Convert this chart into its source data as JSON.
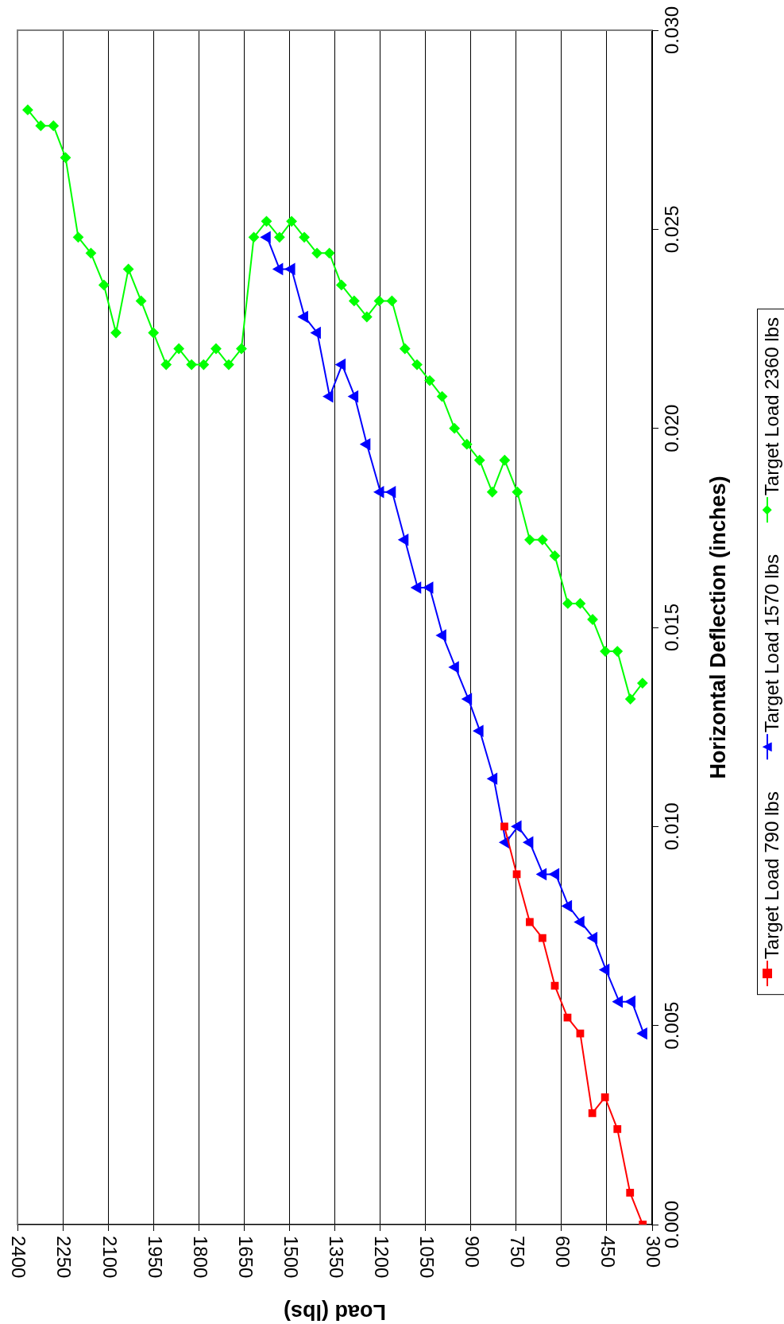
{
  "chart_data": {
    "type": "line",
    "xlabel": "Load (lbs)",
    "ylabel": "Horizontal Deflection (inches)",
    "xlim": [
      2400,
      300
    ],
    "xticks": [
      2400,
      2250,
      2100,
      1950,
      1800,
      1650,
      1500,
      1350,
      1200,
      1050,
      900,
      750,
      600,
      450,
      300
    ],
    "ylim": [
      0,
      0.03
    ],
    "yticks": [
      {
        "value": 0,
        "label": "0.000"
      },
      {
        "value": 0.005,
        "label": "0.005"
      },
      {
        "value": 0.01,
        "label": "0.010"
      },
      {
        "value": 0.015,
        "label": "0.015"
      },
      {
        "value": 0.02,
        "label": "0.020"
      },
      {
        "value": 0.025,
        "label": "0.025"
      },
      {
        "value": 0.03,
        "label": "0.030"
      }
    ],
    "grid": "x",
    "legend": "right",
    "series": [
      {
        "name": "Target Load 790 lbs",
        "color": "#ff0000",
        "marker": "square",
        "x": [
          331,
          373,
          415,
          456,
          498,
          538,
          580,
          622,
          663,
          705,
          748,
          789
        ],
        "values": [
          0,
          0.0008,
          0.0024,
          0.0032,
          0.0028,
          0.0048,
          0.0052,
          0.006,
          0.0072,
          0.0076,
          0.0088,
          0.01
        ]
      },
      {
        "name": "Target Load 1570 lbs",
        "color": "#0000ff",
        "marker": "triangle",
        "x": [
          328,
          367,
          409,
          453,
          493,
          536,
          577,
          619,
          661,
          705,
          744,
          784,
          824,
          870,
          908,
          951,
          993,
          1036,
          1076,
          1118,
          1160,
          1199,
          1244,
          1284,
          1326,
          1367,
          1408,
          1450,
          1493,
          1533,
          1574
        ],
        "values": [
          0.0048,
          0.0056,
          0.0056,
          0.0064,
          0.0072,
          0.0076,
          0.008,
          0.0088,
          0.0088,
          0.0096,
          0.01,
          0.0096,
          0.0112,
          0.0124,
          0.0132,
          0.014,
          0.0148,
          0.016,
          0.016,
          0.0172,
          0.0184,
          0.0184,
          0.0196,
          0.0208,
          0.0216,
          0.0208,
          0.0224,
          0.0228,
          0.024,
          0.024,
          0.0248
        ]
      },
      {
        "name": "Target Load 2360 lbs",
        "color": "#00ff00",
        "marker": "diamond",
        "x": [
          332,
          372,
          415,
          455,
          497,
          538,
          579,
          622,
          663,
          705,
          746,
          788,
          829,
          871,
          913,
          954,
          995,
          1036,
          1078,
          1118,
          1161,
          1203,
          1244,
          1286,
          1328,
          1368,
          1409,
          1451,
          1493,
          1533,
          1576,
          1618,
          1659,
          1701,
          1743,
          1784,
          1824,
          1866,
          1908,
          1950,
          1991,
          2033,
          2074,
          2114,
          2157,
          2199,
          2241,
          2281,
          2323,
          2366
        ],
        "values": [
          0.0136,
          0.0132,
          0.0144,
          0.0144,
          0.0152,
          0.0156,
          0.0156,
          0.0168,
          0.0172,
          0.0172,
          0.0184,
          0.0192,
          0.0184,
          0.0192,
          0.0196,
          0.02,
          0.0208,
          0.0212,
          0.0216,
          0.022,
          0.0232,
          0.0232,
          0.0228,
          0.0232,
          0.0236,
          0.0244,
          0.0244,
          0.0248,
          0.0252,
          0.0248,
          0.0252,
          0.0248,
          0.022,
          0.0216,
          0.022,
          0.0216,
          0.0216,
          0.022,
          0.0216,
          0.0224,
          0.0232,
          0.024,
          0.0224,
          0.0236,
          0.0244,
          0.0248,
          0.0268,
          0.0276,
          0.0276,
          0.028
        ]
      }
    ]
  }
}
